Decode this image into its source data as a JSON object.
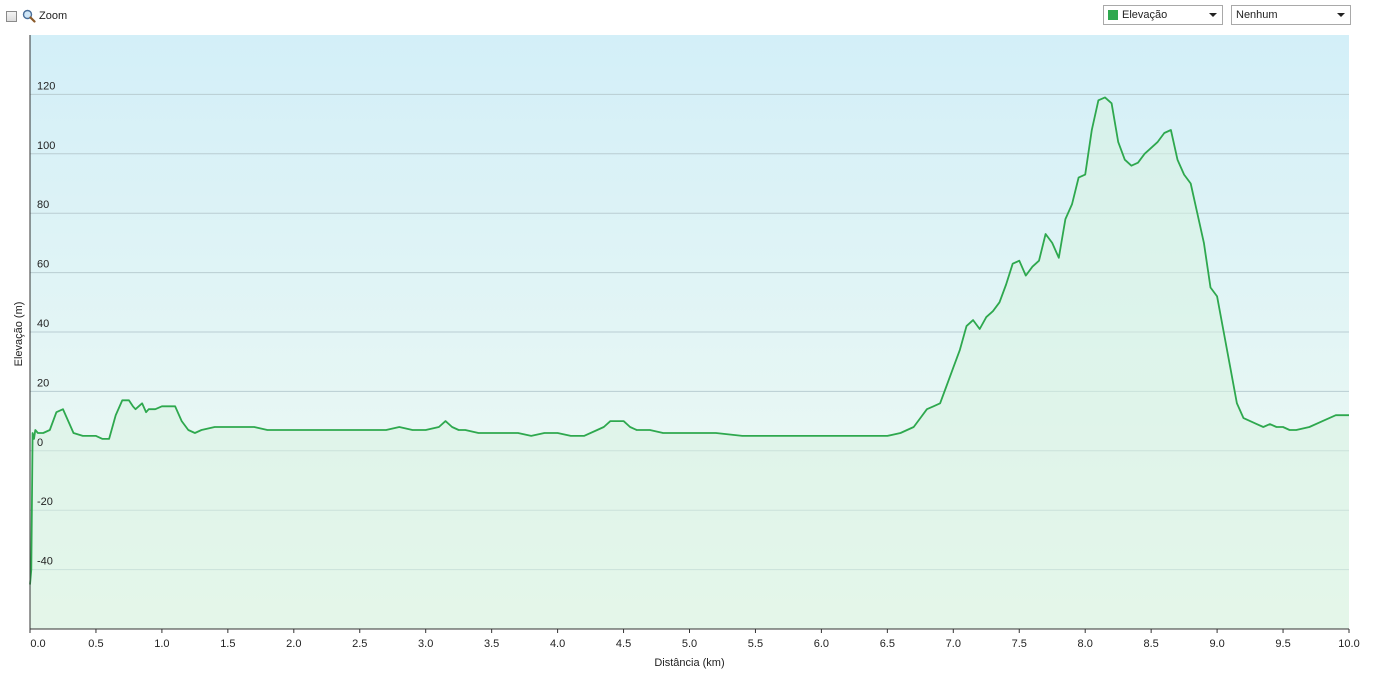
{
  "toolbar": {
    "zoom_label": "Zoom",
    "zoom_checked": false,
    "series_select": {
      "value": "Elevação",
      "color": "#2fa84f"
    },
    "compare_select": {
      "value": "Nenhum"
    }
  },
  "colors": {
    "line": "#2ea84e",
    "plot_bg_top": "#d3eff8",
    "plot_bg_bottom": "#f2fbf2",
    "gridline": "#b9cdd2"
  },
  "chart_data": {
    "type": "area",
    "title": "",
    "xlabel": "Distância  (km)",
    "ylabel": "Elevação (m)",
    "xlim": [
      0,
      10.0
    ],
    "ylim": [
      -60,
      140
    ],
    "xticks": [
      "0.0",
      "0.5",
      "1.0",
      "1.5",
      "2.0",
      "2.5",
      "3.0",
      "3.5",
      "4.0",
      "4.5",
      "5.0",
      "5.5",
      "6.0",
      "6.5",
      "7.0",
      "7.5",
      "8.0",
      "8.5",
      "9.0",
      "9.5",
      "10.0"
    ],
    "yticks": [
      "120",
      "100",
      "80",
      "60",
      "40",
      "20",
      "0",
      "-20",
      "-40"
    ],
    "grid": true,
    "series": [
      {
        "x": [
          0.0,
          0.01,
          0.02,
          0.03,
          0.04,
          0.06,
          0.1,
          0.15,
          0.2,
          0.25,
          0.3,
          0.33,
          0.4,
          0.45,
          0.5,
          0.55,
          0.6,
          0.65,
          0.7,
          0.75,
          0.78,
          0.8,
          0.85,
          0.88,
          0.9,
          0.95,
          1.0,
          1.05,
          1.1,
          1.15,
          1.2,
          1.25,
          1.3,
          1.4,
          1.5,
          1.6,
          1.7,
          1.8,
          1.9,
          2.0,
          2.1,
          2.2,
          2.3,
          2.4,
          2.5,
          2.6,
          2.7,
          2.8,
          2.9,
          3.0,
          3.1,
          3.15,
          3.2,
          3.25,
          3.3,
          3.4,
          3.5,
          3.6,
          3.7,
          3.8,
          3.9,
          4.0,
          4.1,
          4.2,
          4.3,
          4.35,
          4.4,
          4.45,
          4.5,
          4.55,
          4.6,
          4.7,
          4.8,
          4.9,
          5.0,
          5.2,
          5.4,
          5.6,
          5.8,
          6.0,
          6.2,
          6.4,
          6.5,
          6.6,
          6.65,
          6.7,
          6.75,
          6.8,
          6.85,
          6.9,
          6.95,
          7.0,
          7.05,
          7.1,
          7.15,
          7.2,
          7.25,
          7.3,
          7.35,
          7.4,
          7.45,
          7.5,
          7.55,
          7.6,
          7.65,
          7.7,
          7.75,
          7.8,
          7.85,
          7.9,
          7.95,
          8.0,
          8.05,
          8.1,
          8.15,
          8.2,
          8.25,
          8.3,
          8.35,
          8.4,
          8.45,
          8.5,
          8.55,
          8.6,
          8.65,
          8.7,
          8.75,
          8.8,
          8.85,
          8.9,
          8.95,
          9.0,
          9.05,
          9.1,
          9.15,
          9.2,
          9.25,
          9.3,
          9.35,
          9.4,
          9.45,
          9.5,
          9.55,
          9.6,
          9.7,
          9.8,
          9.9,
          10.0
        ],
        "y": [
          -45,
          -40,
          6,
          4,
          7,
          6,
          6,
          7,
          13,
          14,
          9,
          6,
          5,
          5,
          5,
          4,
          4,
          12,
          17,
          17,
          15,
          14,
          16,
          13,
          14,
          14,
          15,
          15,
          15,
          10,
          7,
          6,
          7,
          8,
          8,
          8,
          8,
          7,
          7,
          7,
          7,
          7,
          7,
          7,
          7,
          7,
          7,
          8,
          7,
          7,
          8,
          10,
          8,
          7,
          7,
          6,
          6,
          6,
          6,
          5,
          6,
          6,
          5,
          5,
          7,
          8,
          10,
          10,
          10,
          8,
          7,
          7,
          6,
          6,
          6,
          6,
          5,
          5,
          5,
          5,
          5,
          5,
          5,
          6,
          7,
          8,
          11,
          14,
          15,
          16,
          22,
          28,
          34,
          42,
          44,
          41,
          45,
          47,
          50,
          56,
          63,
          64,
          59,
          62,
          64,
          73,
          70,
          65,
          78,
          83,
          92,
          93,
          108,
          118,
          119,
          117,
          104,
          98,
          96,
          97,
          100,
          102,
          104,
          107,
          108,
          98,
          93,
          90,
          80,
          70,
          55,
          52,
          40,
          28,
          16,
          11,
          10,
          9,
          8,
          9,
          8,
          8,
          7,
          7,
          8,
          10,
          12,
          12
        ]
      }
    ]
  }
}
